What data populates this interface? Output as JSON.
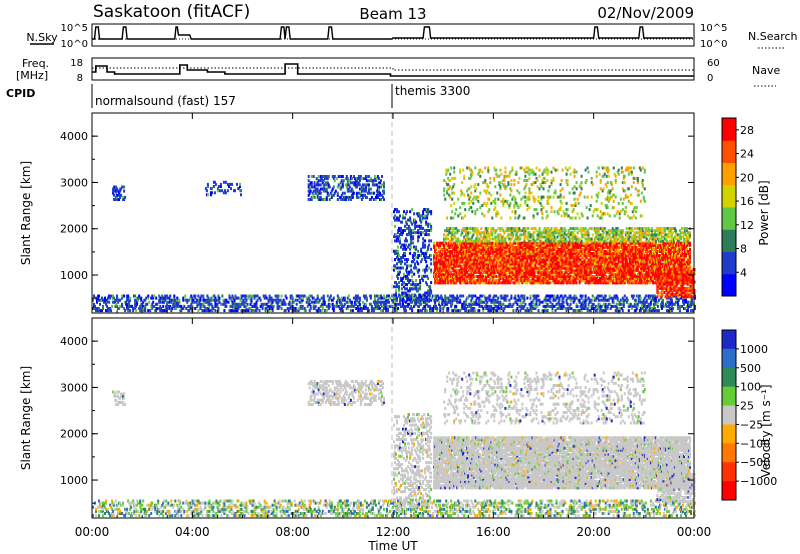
{
  "header": {
    "station": "Saskatoon (fitACF)",
    "beam": "Beam 13",
    "date": "02/Nov/2009"
  },
  "status_panels": {
    "nsky_label": "N.Sky",
    "nsky_ticks": [
      "10^5",
      "10^0"
    ],
    "nsearch_label": "N.Search",
    "nsearch_ticks": [
      "10^5",
      "10^0"
    ],
    "freq_label_line1": "Freq.",
    "freq_label_line2": "[MHz]",
    "freq_ticks": [
      "18",
      "8"
    ],
    "nave_label": "Nave",
    "nave_ticks": [
      "60",
      "0"
    ],
    "cpid_label": "CPID",
    "cpid_modes": [
      {
        "name": "normalsound (fast) 157",
        "start_hour": 0
      },
      {
        "name": "themis 3300",
        "start_hour": 12
      }
    ]
  },
  "chart_data": [
    {
      "type": "heatmap",
      "title": "Power",
      "ylabel": "Slant Range [km]",
      "xlabel": "",
      "xlim": [
        0,
        24
      ],
      "ylim": [
        180,
        4500
      ],
      "y_ticks": [
        1000,
        2000,
        3000,
        4000
      ],
      "colorbar": {
        "label": "Power [dB]",
        "ticks": [
          4,
          8,
          12,
          16,
          20,
          24,
          28
        ],
        "range": [
          0,
          30
        ],
        "colors": [
          "#0000ff",
          "#1e3cc8",
          "#2e7d5a",
          "#5fc844",
          "#d2d200",
          "#ffa000",
          "#ff5000",
          "#ff0000"
        ]
      },
      "scatter_regions": [
        {
          "t0": 0.0,
          "t1": 24.0,
          "r0": 200,
          "r1": 550,
          "density": 0.35,
          "level": "low"
        },
        {
          "t0": 0.8,
          "t1": 1.3,
          "r0": 2600,
          "r1": 2900,
          "density": 0.3,
          "level": "low"
        },
        {
          "t0": 4.5,
          "t1": 6.0,
          "r0": 2700,
          "r1": 3000,
          "density": 0.15,
          "level": "low"
        },
        {
          "t0": 8.6,
          "t1": 11.6,
          "r0": 2600,
          "r1": 3100,
          "density": 0.35,
          "level": "low"
        },
        {
          "t0": 12.0,
          "t1": 13.5,
          "r0": 400,
          "r1": 2400,
          "density": 0.25,
          "level": "low"
        },
        {
          "t0": 13.6,
          "t1": 23.8,
          "r0": 800,
          "r1": 1700,
          "density": 0.75,
          "level": "high"
        },
        {
          "t0": 14.0,
          "t1": 23.8,
          "r0": 1700,
          "r1": 2000,
          "density": 0.45,
          "level": "mid"
        },
        {
          "t0": 14.0,
          "t1": 22.0,
          "r0": 2200,
          "r1": 3300,
          "density": 0.12,
          "level": "mid"
        },
        {
          "t0": 22.5,
          "t1": 24.0,
          "r0": 500,
          "r1": 1100,
          "density": 0.6,
          "level": "high"
        }
      ]
    },
    {
      "type": "heatmap",
      "title": "Velocity",
      "ylabel": "Slant Range [km]",
      "xlabel": "Time UT",
      "xlim": [
        0,
        24
      ],
      "ylim": [
        180,
        4500
      ],
      "x_ticks": [
        "00:00",
        "04:00",
        "08:00",
        "12:00",
        "16:00",
        "20:00",
        "00:00"
      ],
      "y_ticks": [
        1000,
        2000,
        3000,
        4000
      ],
      "colorbar": {
        "label": "Velocity [m s⁻¹]",
        "ticks": [
          "1000",
          "500",
          "100",
          "25",
          "−25",
          "−100",
          "−500",
          "−1000"
        ],
        "colors": [
          "#1e28c8",
          "#2d6ec8",
          "#2e8b57",
          "#66cc33",
          "#c8c8c8",
          "#ffaa00",
          "#ff7800",
          "#ff3200",
          "#ff0000"
        ]
      },
      "scatter_regions": [
        {
          "t0": 0.0,
          "t1": 24.0,
          "r0": 200,
          "r1": 550,
          "density": 0.3,
          "level": "mixed"
        },
        {
          "t0": 0.8,
          "t1": 1.3,
          "r0": 2600,
          "r1": 2900,
          "density": 0.25,
          "level": "gray"
        },
        {
          "t0": 8.6,
          "t1": 11.6,
          "r0": 2600,
          "r1": 3100,
          "density": 0.35,
          "level": "gray"
        },
        {
          "t0": 12.0,
          "t1": 13.5,
          "r0": 400,
          "r1": 2400,
          "density": 0.25,
          "level": "gray"
        },
        {
          "t0": 13.6,
          "t1": 23.8,
          "r0": 800,
          "r1": 1900,
          "density": 0.75,
          "level": "gray"
        },
        {
          "t0": 14.0,
          "t1": 22.0,
          "r0": 2200,
          "r1": 3300,
          "density": 0.15,
          "level": "gray"
        },
        {
          "t0": 22.5,
          "t1": 24.0,
          "r0": 500,
          "r1": 1100,
          "density": 0.5,
          "level": "gray"
        }
      ]
    }
  ]
}
